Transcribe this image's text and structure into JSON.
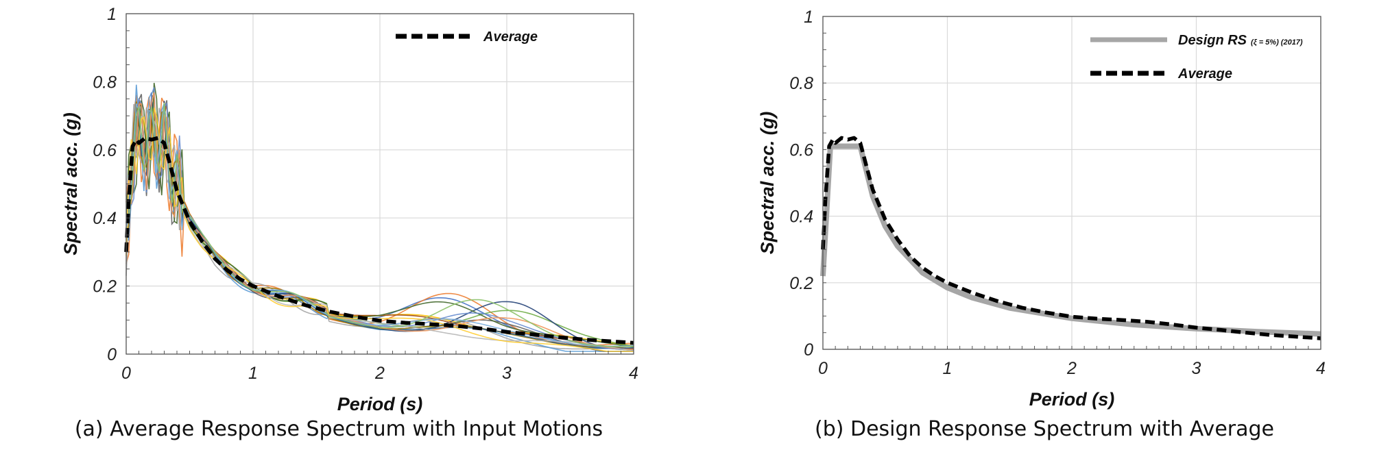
{
  "chart_data": [
    {
      "type": "line",
      "caption": "(a) Average Response Spectrum with Input Motions",
      "xlabel": "Period (s)",
      "ylabel": "Spectral acc. (g)",
      "xlim": [
        0,
        4
      ],
      "ylim": [
        0,
        1
      ],
      "xticks": [
        "0",
        "1",
        "2",
        "3",
        "4"
      ],
      "yticks": [
        "0",
        "0.2",
        "0.4",
        "0.6",
        "0.8",
        "1"
      ],
      "grid": true,
      "legend_position": "top-right",
      "series": [
        {
          "name": "Average",
          "style": "dashed",
          "color": "#000000",
          "x": [
            0,
            0.02,
            0.05,
            0.08,
            0.1,
            0.15,
            0.2,
            0.25,
            0.3,
            0.35,
            0.4,
            0.5,
            0.6,
            0.7,
            0.8,
            0.9,
            1.0,
            1.2,
            1.4,
            1.6,
            1.8,
            2.0,
            2.2,
            2.4,
            2.6,
            2.8,
            3.0,
            3.2,
            3.4,
            3.6,
            3.8,
            4.0
          ],
          "y": [
            0.3,
            0.45,
            0.61,
            0.63,
            0.62,
            0.635,
            0.63,
            0.635,
            0.62,
            0.55,
            0.48,
            0.39,
            0.33,
            0.28,
            0.245,
            0.22,
            0.2,
            0.17,
            0.145,
            0.125,
            0.11,
            0.098,
            0.092,
            0.088,
            0.083,
            0.075,
            0.065,
            0.058,
            0.05,
            0.043,
            0.038,
            0.033
          ]
        }
      ],
      "input_motion_colors": [
        "#4472c4",
        "#ed7d31",
        "#a5a5a5",
        "#ffc000",
        "#5b9bd5",
        "#70ad47",
        "#264478",
        "#9e480e",
        "#636363",
        "#997300",
        "#255e91",
        "#43682b",
        "#698ed0",
        "#f1975a",
        "#b7b7b7",
        "#ffcd33",
        "#7cafdd",
        "#8cc168"
      ]
    },
    {
      "type": "line",
      "caption": "(b) Design Response Spectrum with Average",
      "xlabel": "Period (s)",
      "ylabel": "Spectral acc. (g)",
      "xlim": [
        0,
        4
      ],
      "ylim": [
        0,
        1
      ],
      "xticks": [
        "0",
        "1",
        "2",
        "3",
        "4"
      ],
      "yticks": [
        "0",
        "0.2",
        "0.4",
        "0.6",
        "0.8",
        "1"
      ],
      "grid": true,
      "legend_position": "top-right",
      "series": [
        {
          "name": "Design RS",
          "name_suffix": "(ξ = 5%) (2017)",
          "style": "solid",
          "color": "#a6a6a6",
          "x": [
            0,
            0.06,
            0.3,
            0.4,
            0.5,
            0.6,
            0.8,
            1.0,
            1.2,
            1.5,
            2.0,
            2.5,
            3.0,
            3.5,
            4.0
          ],
          "y": [
            0.22,
            0.61,
            0.61,
            0.46,
            0.37,
            0.31,
            0.23,
            0.185,
            0.155,
            0.124,
            0.093,
            0.074,
            0.062,
            0.053,
            0.046
          ]
        },
        {
          "name": "Average",
          "style": "dashed",
          "color": "#000000",
          "x": [
            0,
            0.02,
            0.05,
            0.08,
            0.1,
            0.15,
            0.2,
            0.25,
            0.3,
            0.35,
            0.4,
            0.5,
            0.6,
            0.7,
            0.8,
            0.9,
            1.0,
            1.2,
            1.4,
            1.6,
            1.8,
            2.0,
            2.2,
            2.4,
            2.6,
            2.8,
            3.0,
            3.2,
            3.4,
            3.6,
            3.8,
            4.0
          ],
          "y": [
            0.3,
            0.45,
            0.61,
            0.63,
            0.62,
            0.635,
            0.63,
            0.635,
            0.62,
            0.55,
            0.48,
            0.39,
            0.33,
            0.28,
            0.245,
            0.22,
            0.2,
            0.17,
            0.145,
            0.125,
            0.11,
            0.098,
            0.092,
            0.088,
            0.083,
            0.075,
            0.065,
            0.058,
            0.05,
            0.043,
            0.038,
            0.033
          ]
        }
      ]
    }
  ]
}
